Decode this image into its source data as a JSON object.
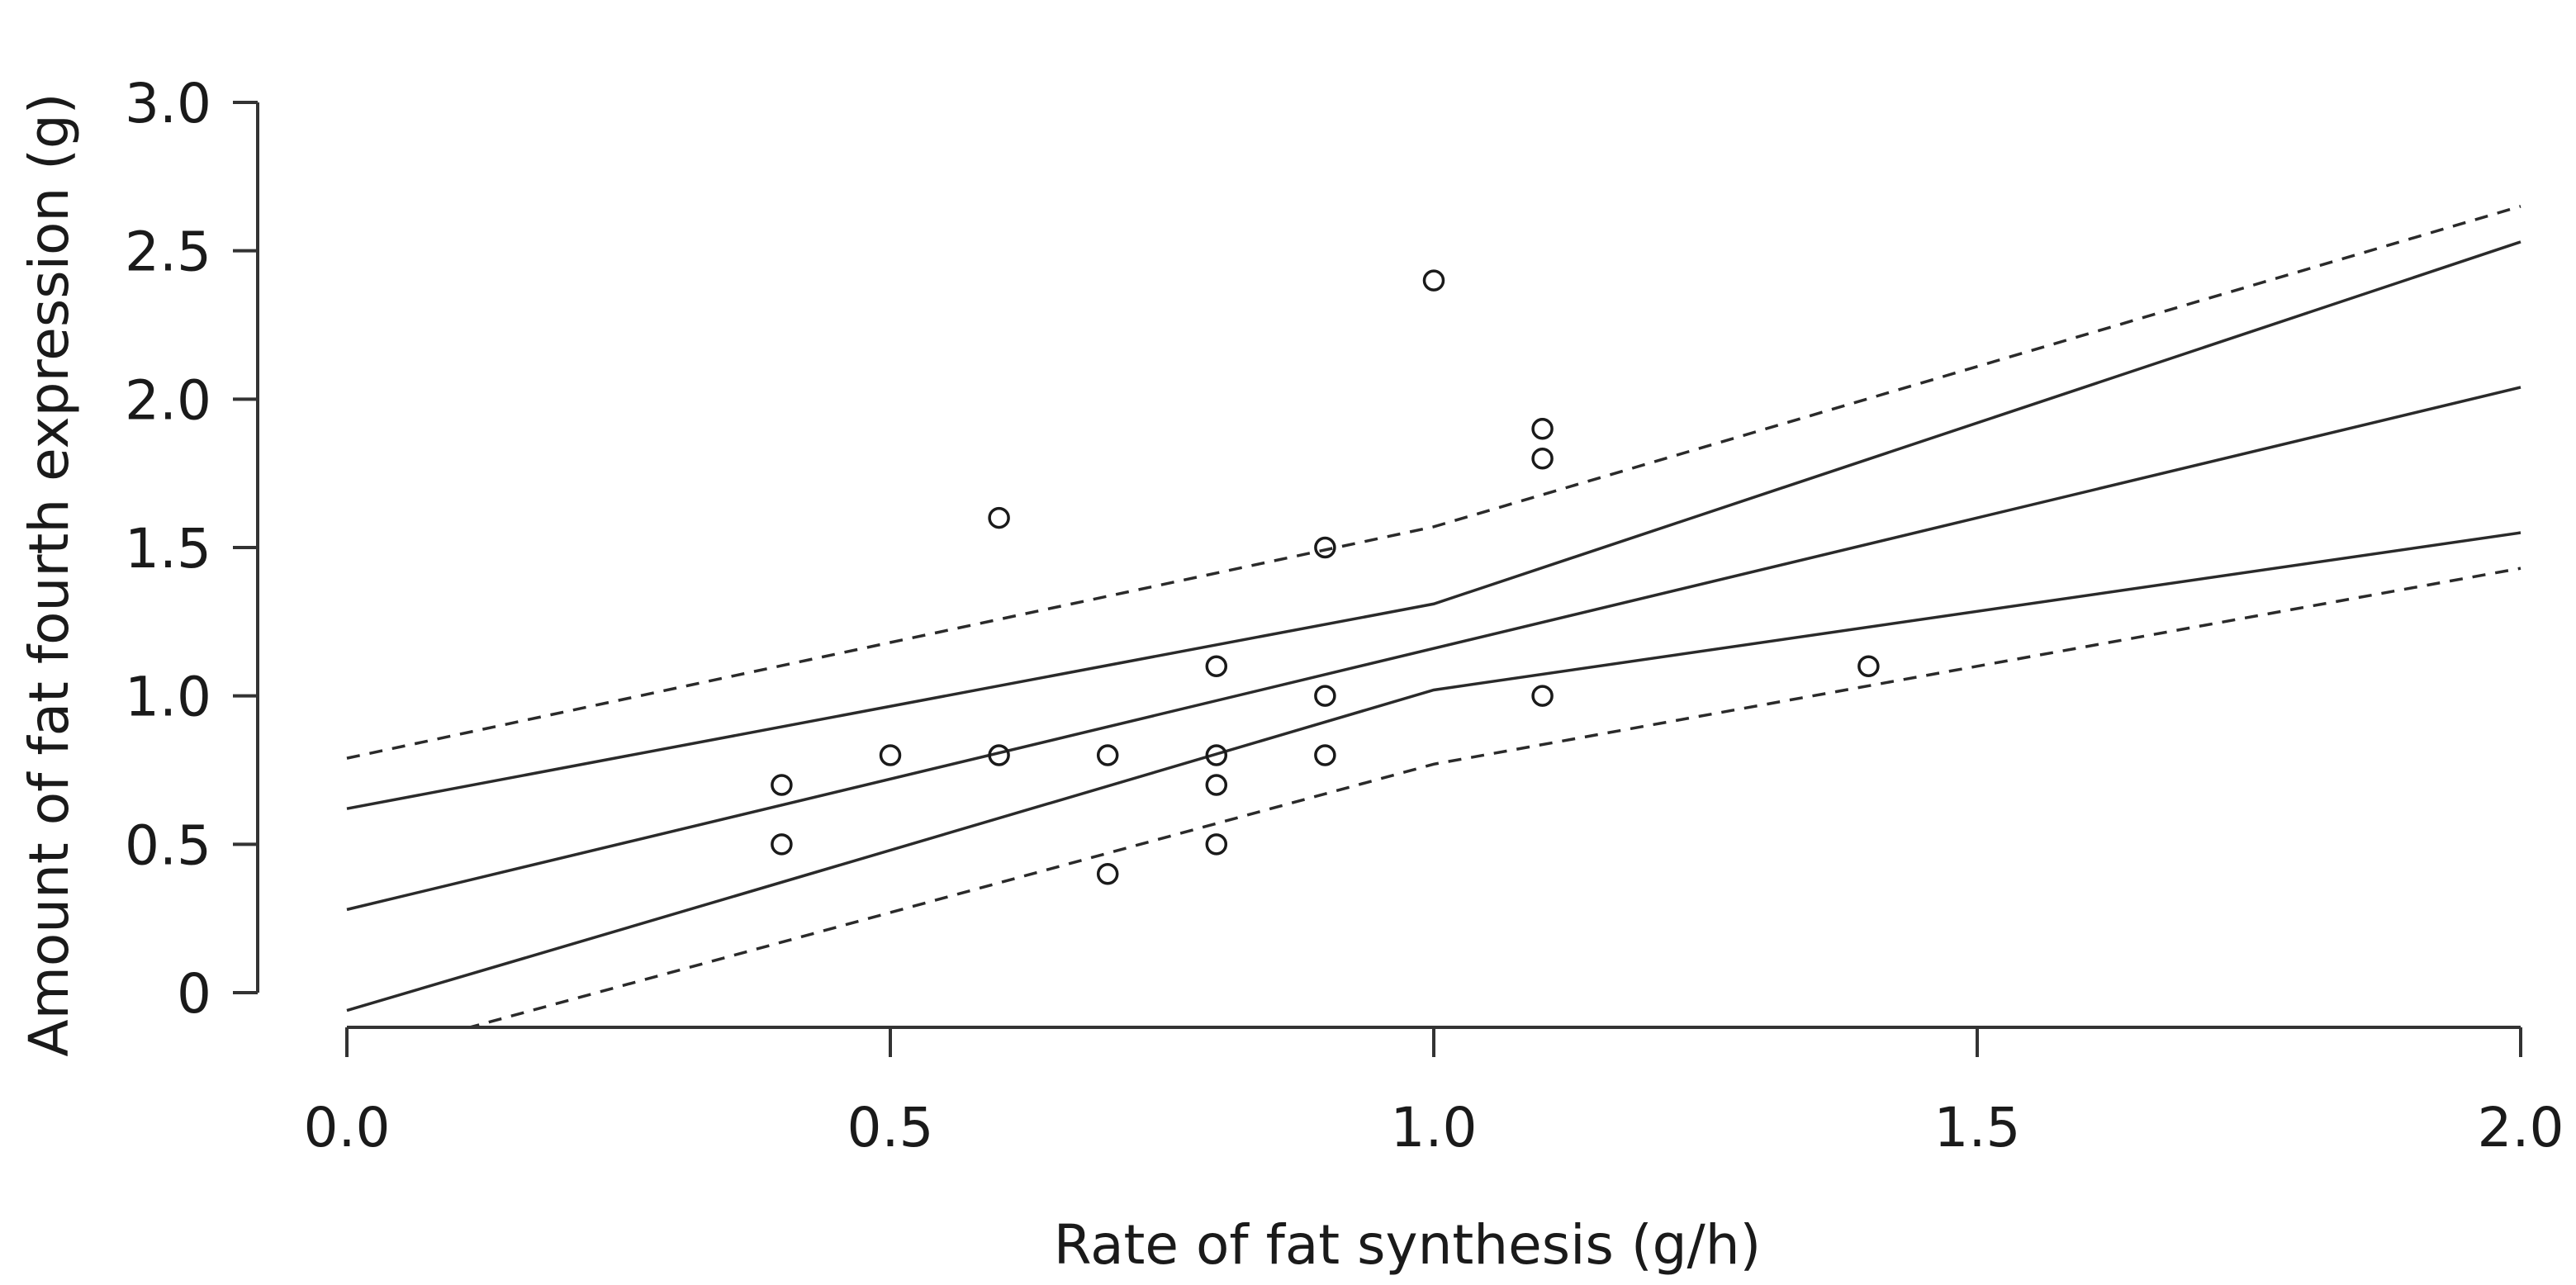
{
  "chart_data": {
    "type": "scatter",
    "title": "",
    "xlabel": "Rate of fat synthesis (g/h)",
    "ylabel": "Amount of fat fourth expression (g)",
    "xlim": [
      0.0,
      2.0
    ],
    "ylim": [
      0.0,
      3.0
    ],
    "x_ticks": [
      0.0,
      0.5,
      1.0,
      1.5,
      2.0
    ],
    "x_tick_labels": [
      "0.0",
      "0.5",
      "1.0",
      "1.5",
      "2.0"
    ],
    "y_ticks": [
      0.0,
      0.5,
      1.0,
      1.5,
      2.0,
      2.5,
      3.0
    ],
    "y_tick_labels": [
      "0",
      "0.5",
      "1.0",
      "1.5",
      "2.0",
      "2.5",
      "3.0"
    ],
    "grid": false,
    "points": [
      {
        "x": 0.4,
        "y": 0.7
      },
      {
        "x": 0.4,
        "y": 0.5
      },
      {
        "x": 0.5,
        "y": 0.8
      },
      {
        "x": 0.6,
        "y": 0.8
      },
      {
        "x": 0.6,
        "y": 1.6
      },
      {
        "x": 0.7,
        "y": 0.8
      },
      {
        "x": 0.7,
        "y": 0.4
      },
      {
        "x": 0.8,
        "y": 1.1
      },
      {
        "x": 0.8,
        "y": 0.8
      },
      {
        "x": 0.8,
        "y": 0.7
      },
      {
        "x": 0.8,
        "y": 0.5
      },
      {
        "x": 0.9,
        "y": 1.5
      },
      {
        "x": 0.9,
        "y": 1.0
      },
      {
        "x": 0.9,
        "y": 0.8
      },
      {
        "x": 1.0,
        "y": 2.4
      },
      {
        "x": 1.1,
        "y": 1.9
      },
      {
        "x": 1.1,
        "y": 1.8
      },
      {
        "x": 1.1,
        "y": 1.0
      },
      {
        "x": 1.4,
        "y": 1.1
      }
    ],
    "lines": [
      {
        "name": "fitted",
        "style": "solid",
        "x": [
          0.0,
          2.0
        ],
        "y": [
          0.28,
          2.04
        ]
      },
      {
        "name": "confidence upper",
        "style": "solid",
        "x": [
          0.0,
          1.0,
          2.0
        ],
        "y": [
          0.62,
          1.31,
          2.53
        ]
      },
      {
        "name": "confidence lower",
        "style": "solid",
        "x": [
          0.0,
          1.0,
          2.0
        ],
        "y": [
          -0.06,
          1.02,
          1.55
        ]
      },
      {
        "name": "prediction upper",
        "style": "dashed",
        "x": [
          0.0,
          1.0,
          2.0
        ],
        "y": [
          0.79,
          1.57,
          2.65
        ]
      },
      {
        "name": "prediction lower",
        "style": "dashed",
        "x": [
          0.11,
          1.0,
          2.0
        ],
        "y": [
          -0.12,
          0.77,
          1.43
        ]
      }
    ]
  }
}
